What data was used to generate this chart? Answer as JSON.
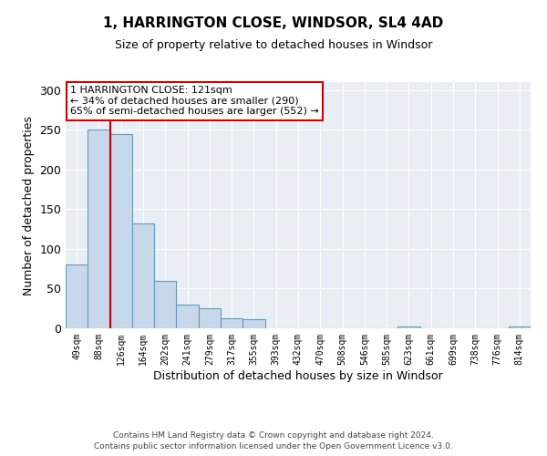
{
  "title": "1, HARRINGTON CLOSE, WINDSOR, SL4 4AD",
  "subtitle": "Size of property relative to detached houses in Windsor",
  "xlabel": "Distribution of detached houses by size in Windsor",
  "ylabel": "Number of detached properties",
  "bin_labels": [
    "49sqm",
    "88sqm",
    "126sqm",
    "164sqm",
    "202sqm",
    "241sqm",
    "279sqm",
    "317sqm",
    "355sqm",
    "393sqm",
    "432sqm",
    "470sqm",
    "508sqm",
    "546sqm",
    "585sqm",
    "623sqm",
    "661sqm",
    "699sqm",
    "738sqm",
    "776sqm",
    "814sqm"
  ],
  "bar_heights": [
    80,
    250,
    245,
    132,
    60,
    30,
    25,
    13,
    11,
    0,
    0,
    0,
    0,
    0,
    0,
    2,
    0,
    0,
    0,
    0,
    2
  ],
  "bar_color": "#c8d8eb",
  "bar_edge_color": "#6699bb",
  "vline_color": "#cc0000",
  "annotation_text": "1 HARRINGTON CLOSE: 121sqm\n← 34% of detached houses are smaller (290)\n65% of semi-detached houses are larger (552) →",
  "annotation_box_color": "#ffffff",
  "annotation_box_edge_color": "#cc0000",
  "ylim": [
    0,
    310
  ],
  "yticks": [
    0,
    50,
    100,
    150,
    200,
    250,
    300
  ],
  "plot_bg_color": "#e8eef4",
  "footer_line1": "Contains HM Land Registry data © Crown copyright and database right 2024.",
  "footer_line2": "Contains public sector information licensed under the Open Government Licence v3.0."
}
